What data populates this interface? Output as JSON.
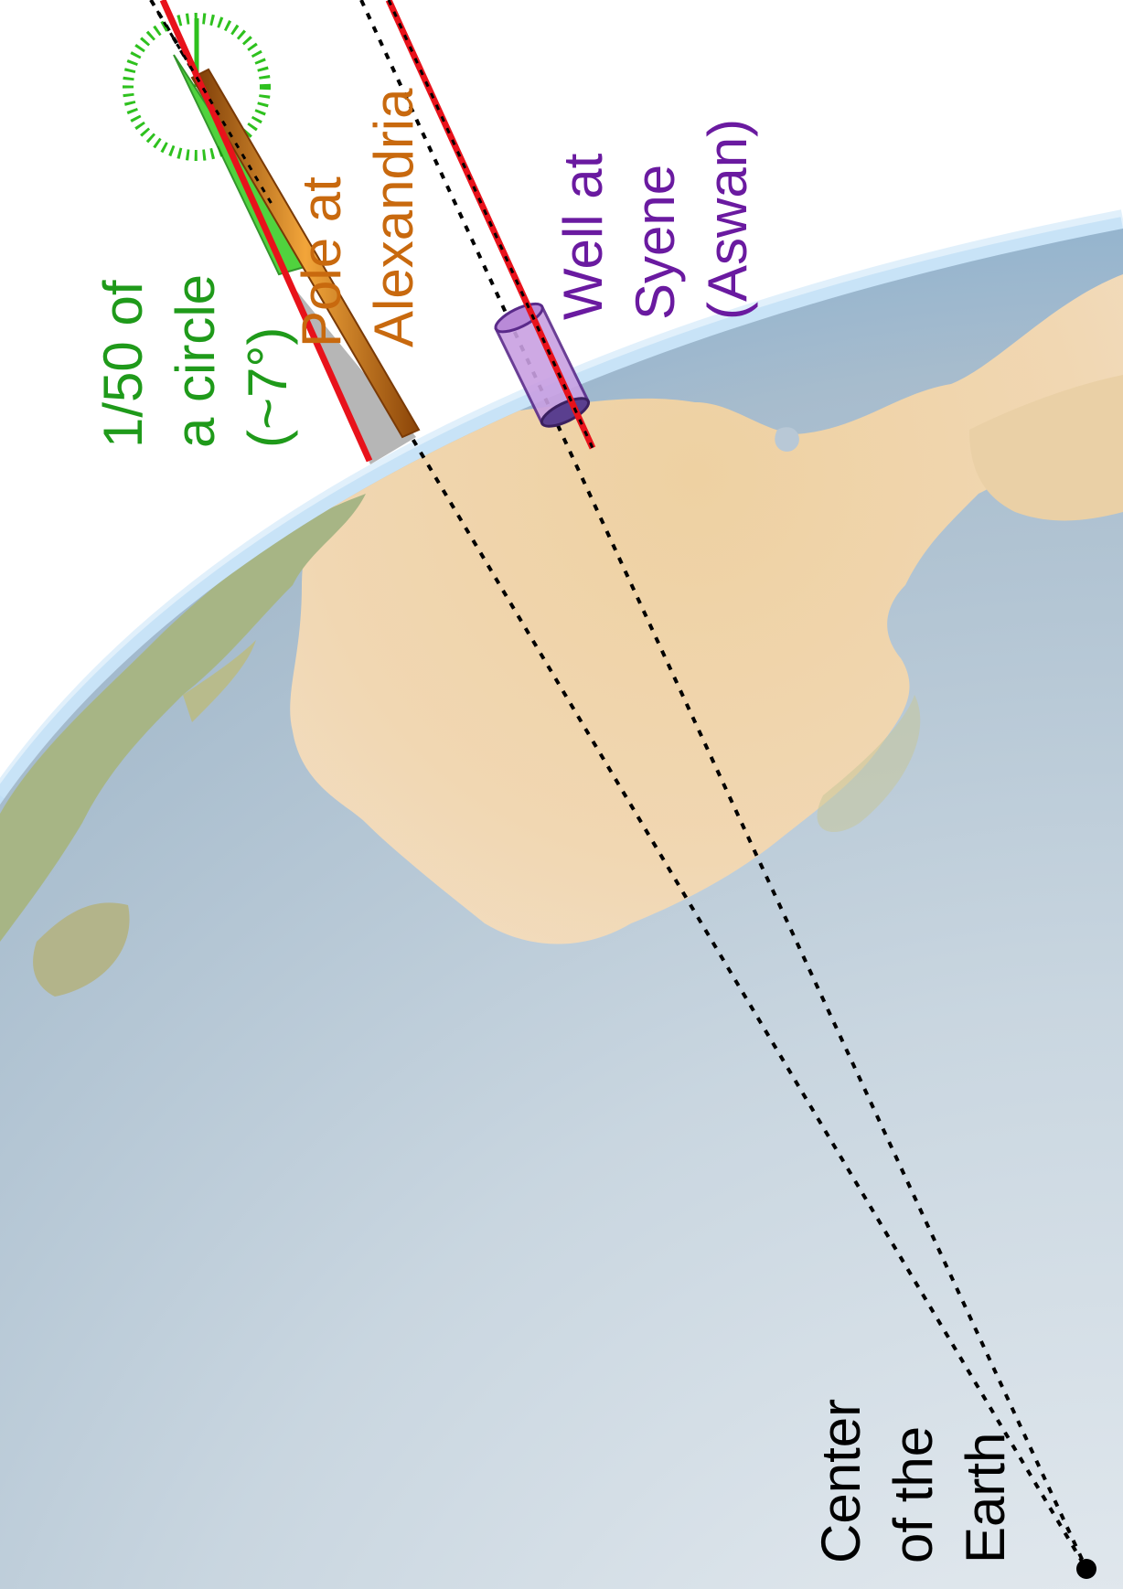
{
  "labels": {
    "angle": [
      "1/50 of",
      "a circle",
      "(~7°)"
    ],
    "pole": [
      "Pole at",
      "Alexandria"
    ],
    "well": [
      "Well at",
      "Syene",
      "(Aswan)"
    ],
    "center": [
      "Center",
      "of the",
      "Earth"
    ]
  },
  "colors": {
    "sun_rays": "#e8121b",
    "angle_marker": "#2ec11e",
    "pole": "#d9791a",
    "well": "#7c3bb0",
    "center_lines": "#000000",
    "ocean": "#b9cad8",
    "land": "#e6c69a",
    "vegetation": "#9db07a",
    "atmosphere": "#8ec4ee"
  }
}
